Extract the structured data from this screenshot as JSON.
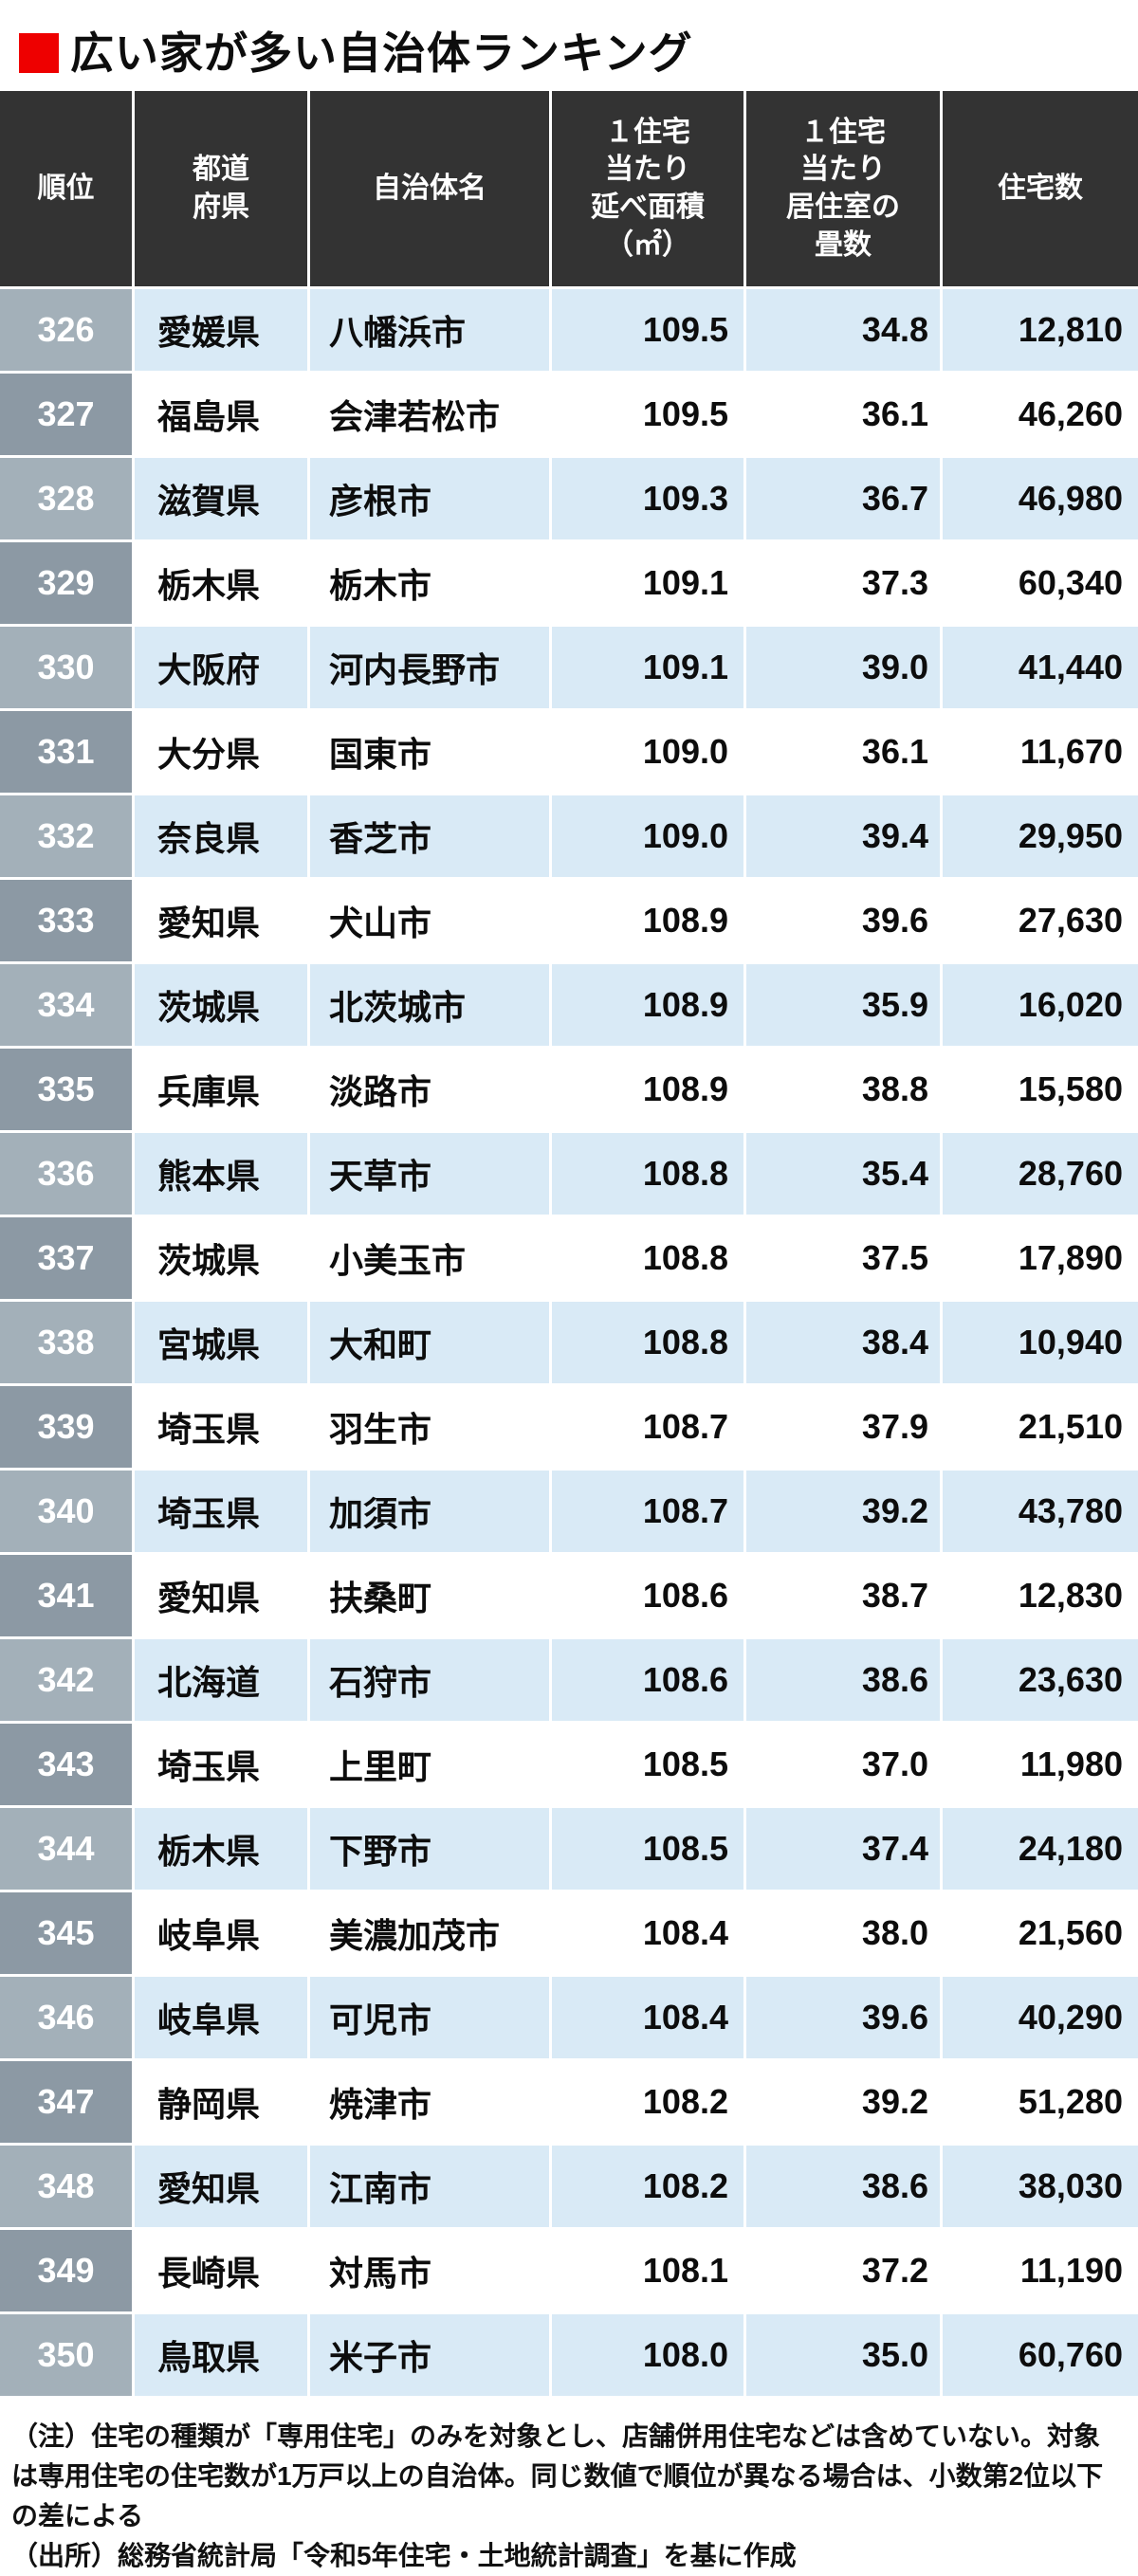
{
  "title": {
    "text": "広い家が多い自治体ランキング"
  },
  "colors": {
    "title_bullet": "#ee0000",
    "header_bg": "#333333",
    "header_text": "#ffffff",
    "row_alt_blue": "#d9eaf6",
    "row_white": "#ffffff",
    "rank_cell_light": "#a3b0b9",
    "rank_cell_dark": "#8c99a4",
    "rank_text": "#ffffff",
    "body_text": "#0d0d0d"
  },
  "chart_data": {
    "type": "table",
    "title": "広い家が多い自治体ランキング",
    "columns": [
      "順位",
      "都道\n府県",
      "自治体名",
      "１住宅\n当たり\n延べ面積\n（㎡）",
      "１住宅\n当たり\n居住室の\n畳数",
      "住宅数"
    ],
    "rows": [
      [
        "326",
        "愛媛県",
        "八幡浜市",
        "109.5",
        "34.8",
        "12,810"
      ],
      [
        "327",
        "福島県",
        "会津若松市",
        "109.5",
        "36.1",
        "46,260"
      ],
      [
        "328",
        "滋賀県",
        "彦根市",
        "109.3",
        "36.7",
        "46,980"
      ],
      [
        "329",
        "栃木県",
        "栃木市",
        "109.1",
        "37.3",
        "60,340"
      ],
      [
        "330",
        "大阪府",
        "河内長野市",
        "109.1",
        "39.0",
        "41,440"
      ],
      [
        "331",
        "大分県",
        "国東市",
        "109.0",
        "36.1",
        "11,670"
      ],
      [
        "332",
        "奈良県",
        "香芝市",
        "109.0",
        "39.4",
        "29,950"
      ],
      [
        "333",
        "愛知県",
        "犬山市",
        "108.9",
        "39.6",
        "27,630"
      ],
      [
        "334",
        "茨城県",
        "北茨城市",
        "108.9",
        "35.9",
        "16,020"
      ],
      [
        "335",
        "兵庫県",
        "淡路市",
        "108.9",
        "38.8",
        "15,580"
      ],
      [
        "336",
        "熊本県",
        "天草市",
        "108.8",
        "35.4",
        "28,760"
      ],
      [
        "337",
        "茨城県",
        "小美玉市",
        "108.8",
        "37.5",
        "17,890"
      ],
      [
        "338",
        "宮城県",
        "大和町",
        "108.8",
        "38.4",
        "10,940"
      ],
      [
        "339",
        "埼玉県",
        "羽生市",
        "108.7",
        "37.9",
        "21,510"
      ],
      [
        "340",
        "埼玉県",
        "加須市",
        "108.7",
        "39.2",
        "43,780"
      ],
      [
        "341",
        "愛知県",
        "扶桑町",
        "108.6",
        "38.7",
        "12,830"
      ],
      [
        "342",
        "北海道",
        "石狩市",
        "108.6",
        "38.6",
        "23,630"
      ],
      [
        "343",
        "埼玉県",
        "上里町",
        "108.5",
        "37.0",
        "11,980"
      ],
      [
        "344",
        "栃木県",
        "下野市",
        "108.5",
        "37.4",
        "24,180"
      ],
      [
        "345",
        "岐阜県",
        "美濃加茂市",
        "108.4",
        "38.0",
        "21,560"
      ],
      [
        "346",
        "岐阜県",
        "可児市",
        "108.4",
        "39.6",
        "40,290"
      ],
      [
        "347",
        "静岡県",
        "焼津市",
        "108.2",
        "39.2",
        "51,280"
      ],
      [
        "348",
        "愛知県",
        "江南市",
        "108.2",
        "38.6",
        "38,030"
      ],
      [
        "349",
        "長崎県",
        "対馬市",
        "108.1",
        "37.2",
        "11,190"
      ],
      [
        "350",
        "鳥取県",
        "米子市",
        "108.0",
        "35.0",
        "60,760"
      ]
    ]
  },
  "notes": {
    "note": "（注）住宅の種類が「専用住宅」のみを対象とし、店舗併用住宅などは含めていない。対象は専用住宅の住宅数が1万戸以上の自治体。同じ数値で順位が異なる場合は、小数第2位以下の差による",
    "source": "（出所）総務省統計局「令和5年住宅・土地統計調査」を基に作成"
  }
}
